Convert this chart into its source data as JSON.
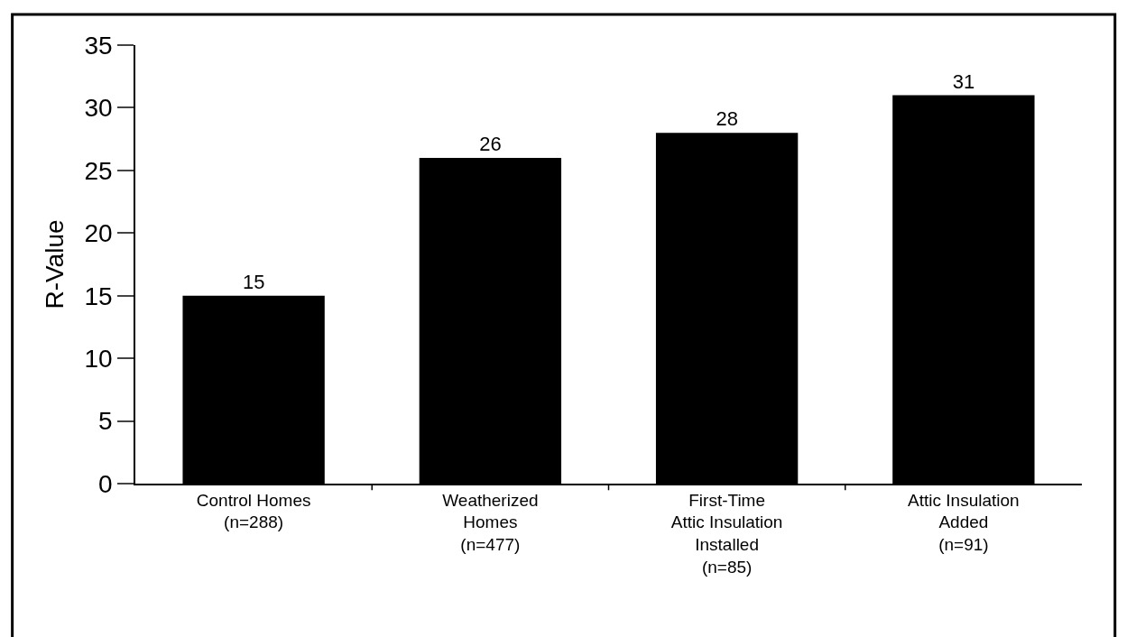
{
  "chart_data": {
    "type": "bar",
    "ylabel": "R-Value",
    "categories": [
      "Control Homes\n(n=288)",
      "Weatherized\nHomes\n(n=477)",
      "First-Time\nAttic Insulation\nInstalled\n(n=85)",
      "Attic Insulation\nAdded\n(n=91)"
    ],
    "values": [
      15,
      26,
      28,
      31
    ],
    "color": "#000000",
    "ylim": [
      0,
      35
    ],
    "yticks": [
      0,
      5,
      10,
      15,
      20,
      25,
      30,
      35
    ],
    "data_labels": true
  }
}
